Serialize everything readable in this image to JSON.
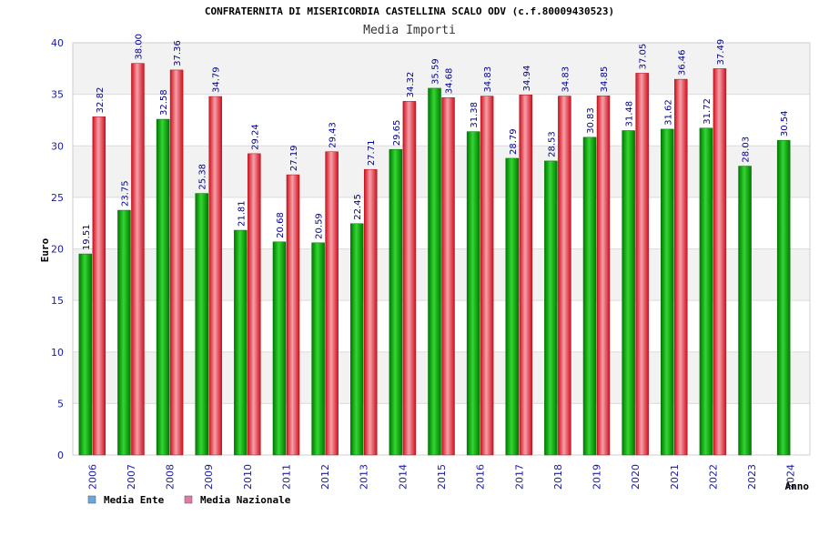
{
  "chart_data": {
    "type": "bar",
    "title": "CONFRATERNITA DI MISERICORDIA CASTELLINA SCALO ODV (c.f.80009430523)",
    "subtitle": "Media Importi",
    "xlabel": "Anno",
    "ylabel": "Euro",
    "ylim": [
      0,
      40
    ],
    "yticks": [
      0,
      5,
      10,
      15,
      20,
      25,
      30,
      35,
      40
    ],
    "grid": true,
    "legend_position": "bottom-left",
    "categories": [
      "2006",
      "2007",
      "2008",
      "2009",
      "2010",
      "2011",
      "2012",
      "2013",
      "2014",
      "2015",
      "2016",
      "2017",
      "2018",
      "2019",
      "2020",
      "2021",
      "2022",
      "2023",
      "2024"
    ],
    "series": [
      {
        "name": "Media Ente",
        "color": "#00b400",
        "legend_color": "#6aa6e0",
        "values": [
          19.51,
          23.75,
          32.58,
          25.38,
          21.81,
          20.68,
          20.59,
          22.45,
          29.65,
          35.59,
          31.38,
          28.79,
          28.53,
          30.83,
          31.48,
          31.62,
          31.72,
          28.03,
          30.54
        ],
        "labels": [
          "19.51",
          "23.75",
          "32.58",
          "25.38",
          "21.81",
          "20.68",
          "20.59",
          "22.45",
          "29.65",
          "35.59",
          "31.38",
          "28.79",
          "28.53",
          "30.83",
          "31.48",
          "31.62",
          "31.72",
          "28.03",
          "30.54"
        ]
      },
      {
        "name": "Media Nazionale",
        "color": "#e0202a",
        "legend_color": "#e07aa8",
        "values": [
          32.82,
          38.0,
          37.36,
          34.79,
          29.24,
          27.19,
          29.43,
          27.71,
          34.32,
          34.68,
          34.83,
          34.94,
          34.83,
          34.85,
          37.05,
          36.46,
          37.49,
          null,
          null
        ],
        "labels": [
          "32.82",
          "38.00",
          "37.36",
          "34.79",
          "29.24",
          "27.19",
          "29.43",
          "27.71",
          "34.32",
          "34.68",
          "34.83",
          "34.94",
          "34.83",
          "34.85",
          "37.05",
          "36.46",
          "37.49",
          null,
          null
        ]
      }
    ]
  }
}
